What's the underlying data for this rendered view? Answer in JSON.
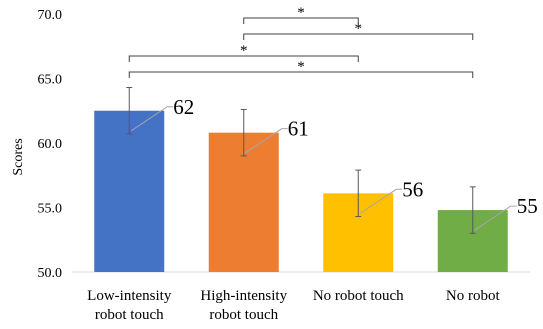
{
  "chart_data": {
    "type": "bar",
    "ylabel": "Scores",
    "ylim": [
      50,
      70
    ],
    "yticks": [
      "50.0",
      "55.0",
      "60.0",
      "65.0",
      "70.0"
    ],
    "categories": [
      [
        "Low-intensity",
        "robot touch"
      ],
      [
        "High-intensity",
        "robot touch"
      ],
      [
        "No robot touch"
      ],
      [
        "No robot"
      ]
    ],
    "values": [
      62.5,
      60.8,
      56.1,
      54.8
    ],
    "error": [
      1.8,
      1.8,
      1.8,
      1.8
    ],
    "data_labels": [
      "62",
      "61",
      "56",
      "55"
    ],
    "colors": [
      "#4472C4",
      "#ED7D31",
      "#FFC000",
      "#70AD47"
    ],
    "significance": [
      {
        "from": 1,
        "to": 2,
        "label": "*"
      },
      {
        "from": 1,
        "to": 3,
        "label": "*"
      },
      {
        "from": 0,
        "to": 2,
        "label": "*"
      },
      {
        "from": 0,
        "to": 3,
        "label": "*"
      }
    ],
    "grid": false
  }
}
